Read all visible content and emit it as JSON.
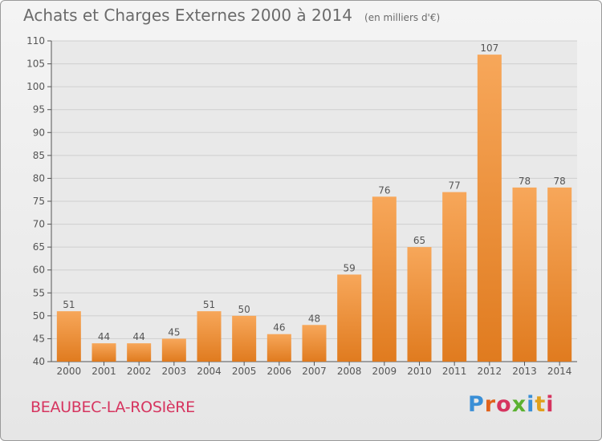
{
  "header": {
    "title": "Achats et Charges Externes 2000 à 2014",
    "subtitle": "(en milliers d'€)"
  },
  "footer": {
    "place": "BEAUBEC-LA-ROSIèRE",
    "brand": "Proxiti"
  },
  "colors": {
    "bar_top": "#f7a75a",
    "bar_bottom": "#e07b1f",
    "text": "#6b6b6b",
    "place": "#d6345f",
    "brand_letters": [
      "#3a8fd6",
      "#e0621c",
      "#d6345f",
      "#5bb130",
      "#3a8fd6",
      "#e0a01c",
      "#d6345f"
    ]
  },
  "chart_data": {
    "type": "bar",
    "categories": [
      "2000",
      "2001",
      "2002",
      "2003",
      "2004",
      "2005",
      "2006",
      "2007",
      "2008",
      "2009",
      "2010",
      "2011",
      "2012",
      "2013",
      "2014"
    ],
    "values": [
      51,
      44,
      44,
      45,
      51,
      50,
      46,
      48,
      59,
      76,
      65,
      77,
      107,
      78,
      78
    ],
    "ylim": [
      40,
      110
    ],
    "yticks": [
      40,
      45,
      50,
      55,
      60,
      65,
      70,
      75,
      80,
      85,
      90,
      95,
      100,
      105,
      110
    ],
    "grid": true,
    "data_labels": true
  }
}
